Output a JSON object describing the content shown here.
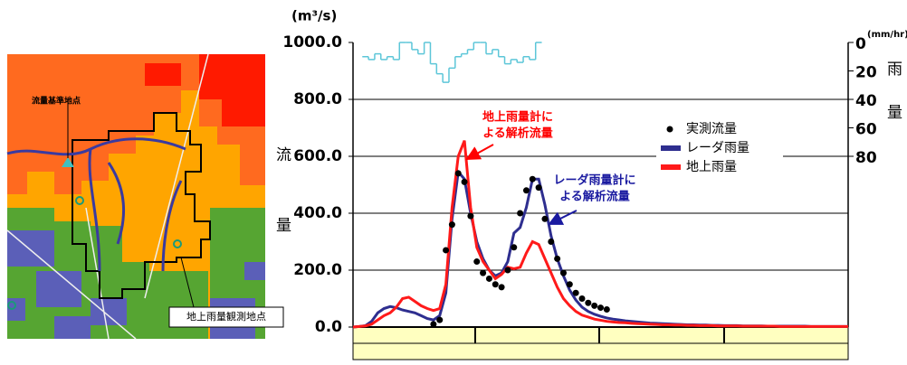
{
  "map": {
    "labels": [
      "流量基準地点",
      "地上雨量観測地点"
    ]
  },
  "chart_data": {
    "type": "line",
    "y_label": "(m³/s)",
    "y2_label": "(mm/hr)",
    "y_axis_chars": [
      "流",
      "量"
    ],
    "y2_axis_chars": [
      "雨",
      "量"
    ],
    "categories": [
      null,
      null,
      null,
      null,
      null,
      null,
      null,
      null,
      null,
      null,
      null,
      null,
      null,
      null,
      null,
      null,
      null,
      null,
      null,
      null,
      null,
      null,
      null,
      null,
      null,
      null,
      null,
      null,
      null,
      null,
      null,
      null,
      null,
      null,
      null,
      null,
      null,
      null,
      null,
      null,
      null,
      null,
      null,
      null,
      null,
      null,
      null,
      null,
      null,
      null,
      null,
      null,
      null,
      null,
      null,
      null,
      null,
      null,
      null,
      null,
      null,
      null,
      null,
      null,
      null,
      null,
      null,
      null,
      null,
      null,
      null,
      null,
      null,
      null,
      null,
      null,
      null,
      null,
      null,
      null,
      null
    ],
    "ylim": [
      0,
      1000
    ],
    "yticks": [
      {
        "value": 0,
        "label": "0.0"
      },
      {
        "value": 200,
        "label": "200.0"
      },
      {
        "value": 400,
        "label": "400.0"
      },
      {
        "value": 600,
        "label": "600.0"
      },
      {
        "value": 800,
        "label": "800.0"
      },
      {
        "value": 1000,
        "label": "1000.0"
      }
    ],
    "y2lim": [
      200,
      0
    ],
    "y2ticks": [
      0,
      20,
      40,
      60,
      80
    ],
    "grid": true,
    "legend": "upper right",
    "series": [
      {
        "name": "実測流量",
        "kind": "scatter",
        "color": "#000000",
        "values": [
          null,
          null,
          null,
          null,
          null,
          null,
          null,
          null,
          null,
          null,
          null,
          null,
          null,
          10,
          25,
          270,
          360,
          540,
          510,
          390,
          230,
          190,
          170,
          150,
          140,
          200,
          280,
          400,
          480,
          520,
          490,
          380,
          300,
          240,
          190,
          150,
          120,
          100,
          85,
          75,
          68,
          62,
          null,
          null,
          null,
          null,
          null,
          null,
          null,
          null,
          null,
          null,
          null,
          null,
          null,
          null,
          null,
          null,
          null,
          null,
          null,
          null,
          null,
          null,
          null,
          null,
          null,
          null,
          null,
          null,
          null,
          null,
          null,
          null,
          null,
          null,
          null,
          null,
          null,
          null,
          null
        ]
      },
      {
        "name": "レーダ雨量",
        "kind": "line",
        "color": "#2e2e8f",
        "values": [
          0,
          2,
          5,
          20,
          50,
          65,
          72,
          68,
          60,
          55,
          50,
          40,
          30,
          25,
          40,
          120,
          380,
          545,
          520,
          400,
          300,
          240,
          200,
          180,
          190,
          230,
          330,
          350,
          420,
          520,
          520,
          430,
          320,
          240,
          180,
          130,
          95,
          70,
          55,
          45,
          38,
          32,
          28,
          25,
          22,
          20,
          18,
          16,
          14,
          13,
          12,
          11,
          10,
          9,
          8,
          8,
          7,
          7,
          6,
          6,
          5,
          5,
          5,
          4,
          4,
          4,
          4,
          3,
          3,
          3,
          3,
          3,
          3,
          3,
          2,
          2,
          2,
          2,
          2,
          2,
          2
        ]
      },
      {
        "name": "地上雨量",
        "kind": "line",
        "color": "#ff1a1a",
        "values": [
          0,
          2,
          4,
          10,
          25,
          40,
          50,
          70,
          100,
          105,
          90,
          75,
          65,
          58,
          65,
          150,
          420,
          600,
          655,
          420,
          280,
          230,
          200,
          170,
          185,
          210,
          205,
          210,
          260,
          300,
          290,
          240,
          190,
          140,
          100,
          75,
          55,
          42,
          35,
          28,
          24,
          20,
          18,
          16,
          15,
          13,
          12,
          11,
          10,
          9,
          8,
          8,
          7,
          7,
          6,
          6,
          5,
          5,
          5,
          4,
          4,
          4,
          4,
          3,
          3,
          3,
          3,
          3,
          3,
          2,
          2,
          2,
          2,
          2,
          2,
          2,
          2,
          2,
          2,
          2,
          2
        ]
      },
      {
        "kind": "step",
        "axis": "y2",
        "color": "#5cc6d8",
        "values": [
          null,
          null,
          10,
          12,
          8,
          12,
          10,
          12,
          0,
          0,
          5,
          8,
          0,
          15,
          22,
          28,
          18,
          10,
          8,
          5,
          0,
          0,
          8,
          5,
          10,
          15,
          12,
          14,
          10,
          12,
          0,
          null,
          null,
          null,
          null,
          null,
          null,
          null,
          null,
          null,
          null,
          null,
          null,
          null,
          null,
          null,
          null,
          null,
          null,
          null,
          null,
          null,
          null,
          null,
          null,
          null,
          null,
          null,
          null,
          null,
          null,
          null,
          null,
          null,
          null,
          null,
          null,
          null,
          null,
          null,
          null,
          null,
          null,
          null,
          null,
          null,
          null,
          null,
          null,
          null,
          null
        ]
      }
    ],
    "annotations": [
      {
        "lines": [
          "地上雨量計に",
          "よる解析流量"
        ],
        "color": "#ff0000"
      },
      {
        "lines": [
          "レーダ雨量計に",
          "よる解析流量"
        ],
        "color": "#1a1aa0"
      }
    ]
  }
}
